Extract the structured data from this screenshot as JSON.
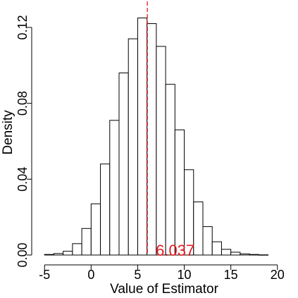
{
  "chart_data": {
    "type": "histogram",
    "title": "",
    "xlabel": "Value of Estimator",
    "ylabel": "Density",
    "xlim": [
      -6,
      21
    ],
    "ylim": [
      0,
      0.13
    ],
    "xticks": [
      -5,
      0,
      5,
      10,
      15,
      20
    ],
    "xtick_labels": [
      "-5",
      "0",
      "5",
      "10",
      "15",
      "20"
    ],
    "yticks": [
      0.0,
      0.04,
      0.08,
      0.12
    ],
    "ytick_labels": [
      "0.00",
      "0.04",
      "0.08",
      "0.12"
    ],
    "bin_width": 1,
    "bins": [
      {
        "x0": -5,
        "x1": -4,
        "density": 0.0003
      },
      {
        "x0": -4,
        "x1": -3,
        "density": 0.0008
      },
      {
        "x0": -3,
        "x1": -2,
        "density": 0.002
      },
      {
        "x0": -2,
        "x1": -1,
        "density": 0.006
      },
      {
        "x0": -1,
        "x1": 0,
        "density": 0.014
      },
      {
        "x0": 0,
        "x1": 1,
        "density": 0.027
      },
      {
        "x0": 1,
        "x1": 2,
        "density": 0.048
      },
      {
        "x0": 2,
        "x1": 3,
        "density": 0.071
      },
      {
        "x0": 3,
        "x1": 4,
        "density": 0.096
      },
      {
        "x0": 4,
        "x1": 5,
        "density": 0.114
      },
      {
        "x0": 5,
        "x1": 6,
        "density": 0.125
      },
      {
        "x0": 6,
        "x1": 7,
        "density": 0.122
      },
      {
        "x0": 7,
        "x1": 8,
        "density": 0.11
      },
      {
        "x0": 8,
        "x1": 9,
        "density": 0.09
      },
      {
        "x0": 9,
        "x1": 10,
        "density": 0.066
      },
      {
        "x0": 10,
        "x1": 11,
        "density": 0.045
      },
      {
        "x0": 11,
        "x1": 12,
        "density": 0.028
      },
      {
        "x0": 12,
        "x1": 13,
        "density": 0.015
      },
      {
        "x0": 13,
        "x1": 14,
        "density": 0.007
      },
      {
        "x0": 14,
        "x1": 15,
        "density": 0.003
      },
      {
        "x0": 15,
        "x1": 16,
        "density": 0.0015
      },
      {
        "x0": 16,
        "x1": 17,
        "density": 0.0006
      },
      {
        "x0": 17,
        "x1": 18,
        "density": 0.0003
      },
      {
        "x0": 18,
        "x1": 19,
        "density": 0.0001
      }
    ],
    "reference_line": {
      "value": 6.037,
      "label": "6.037",
      "color": "#e8191f",
      "style": "dashed"
    },
    "bar_fill": "#ffffff",
    "bar_stroke": "#000000",
    "grid": false,
    "legend": "none"
  }
}
